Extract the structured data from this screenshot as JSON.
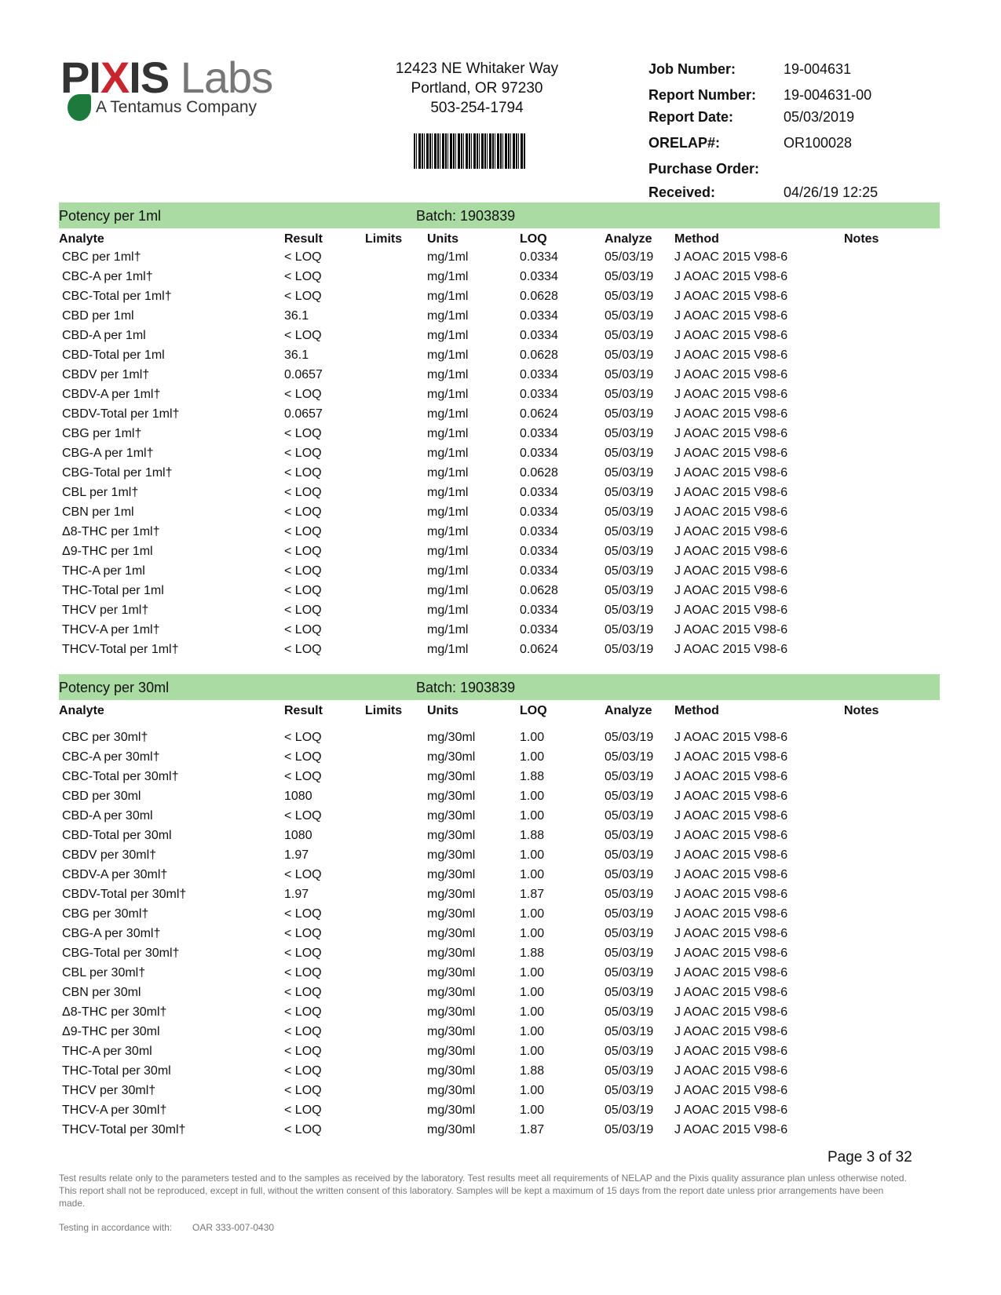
{
  "logo": {
    "text_part1": "PIXIS",
    "text_part2": "Labs",
    "subtitle": "A Tentamus Company"
  },
  "address": {
    "line1": "12423 NE Whitaker Way",
    "line2": "Portland, OR 97230",
    "phone": "503-254-1794"
  },
  "report_info": [
    {
      "label": "Job Number:",
      "value": "19-004631"
    },
    {
      "label": "Report Number:",
      "value": "19-004631-00"
    },
    {
      "label": "Report Date:",
      "value": "05/03/2019"
    },
    {
      "label": "ORELAP#:",
      "value": "OR100028"
    },
    {
      "label": "Purchase Order:",
      "value": ""
    },
    {
      "label": "Received:",
      "value": "04/26/19  12:25"
    }
  ],
  "columns": [
    "Analyte",
    "Result",
    "Limits",
    "Units",
    "LOQ",
    "Analyze",
    "Method",
    "Notes"
  ],
  "sections": [
    {
      "title": "Potency per 1ml",
      "batch": "Batch: 1903839",
      "rows": [
        [
          "CBC per 1ml†",
          "< LOQ",
          "",
          "mg/1ml",
          "0.0334",
          "05/03/19",
          "J AOAC 2015 V98-6",
          ""
        ],
        [
          "CBC-A per 1ml†",
          "< LOQ",
          "",
          "mg/1ml",
          "0.0334",
          "05/03/19",
          "J AOAC 2015 V98-6",
          ""
        ],
        [
          "CBC-Total per 1ml†",
          "< LOQ",
          "",
          "mg/1ml",
          "0.0628",
          "05/03/19",
          "J AOAC 2015 V98-6",
          ""
        ],
        [
          "CBD per 1ml",
          "36.1",
          "",
          "mg/1ml",
          "0.0334",
          "05/03/19",
          "J AOAC 2015 V98-6",
          ""
        ],
        [
          "CBD-A per 1ml",
          "< LOQ",
          "",
          "mg/1ml",
          "0.0334",
          "05/03/19",
          "J AOAC 2015 V98-6",
          ""
        ],
        [
          "CBD-Total per 1ml",
          "36.1",
          "",
          "mg/1ml",
          "0.0628",
          "05/03/19",
          "J AOAC 2015 V98-6",
          ""
        ],
        [
          "CBDV per 1ml†",
          "0.0657",
          "",
          "mg/1ml",
          "0.0334",
          "05/03/19",
          "J AOAC 2015 V98-6",
          ""
        ],
        [
          "CBDV-A per 1ml†",
          "< LOQ",
          "",
          "mg/1ml",
          "0.0334",
          "05/03/19",
          "J AOAC 2015 V98-6",
          ""
        ],
        [
          "CBDV-Total per 1ml†",
          "0.0657",
          "",
          "mg/1ml",
          "0.0624",
          "05/03/19",
          "J AOAC 2015 V98-6",
          ""
        ],
        [
          "CBG per 1ml†",
          "< LOQ",
          "",
          "mg/1ml",
          "0.0334",
          "05/03/19",
          "J AOAC 2015 V98-6",
          ""
        ],
        [
          "CBG-A per 1ml†",
          "< LOQ",
          "",
          "mg/1ml",
          "0.0334",
          "05/03/19",
          "J AOAC 2015 V98-6",
          ""
        ],
        [
          "CBG-Total per 1ml†",
          "< LOQ",
          "",
          "mg/1ml",
          "0.0628",
          "05/03/19",
          "J AOAC 2015 V98-6",
          ""
        ],
        [
          "CBL per 1ml†",
          "< LOQ",
          "",
          "mg/1ml",
          "0.0334",
          "05/03/19",
          "J AOAC 2015 V98-6",
          ""
        ],
        [
          "CBN per 1ml",
          "< LOQ",
          "",
          "mg/1ml",
          "0.0334",
          "05/03/19",
          "J AOAC 2015 V98-6",
          ""
        ],
        [
          "Δ8-THC per 1ml†",
          "< LOQ",
          "",
          "mg/1ml",
          "0.0334",
          "05/03/19",
          "J AOAC 2015 V98-6",
          ""
        ],
        [
          "Δ9-THC per 1ml",
          "< LOQ",
          "",
          "mg/1ml",
          "0.0334",
          "05/03/19",
          "J AOAC 2015 V98-6",
          ""
        ],
        [
          "THC-A per 1ml",
          "< LOQ",
          "",
          "mg/1ml",
          "0.0334",
          "05/03/19",
          "J AOAC 2015 V98-6",
          ""
        ],
        [
          "THC-Total per 1ml",
          "< LOQ",
          "",
          "mg/1ml",
          "0.0628",
          "05/03/19",
          "J AOAC 2015 V98-6",
          ""
        ],
        [
          "THCV per 1ml†",
          "< LOQ",
          "",
          "mg/1ml",
          "0.0334",
          "05/03/19",
          "J AOAC 2015 V98-6",
          ""
        ],
        [
          "THCV-A per 1ml†",
          "< LOQ",
          "",
          "mg/1ml",
          "0.0334",
          "05/03/19",
          "J AOAC 2015 V98-6",
          ""
        ],
        [
          "THCV-Total per 1ml†",
          "< LOQ",
          "",
          "mg/1ml",
          "0.0624",
          "05/03/19",
          "J AOAC 2015 V98-6",
          ""
        ]
      ]
    },
    {
      "title": "Potency per 30ml",
      "batch": "Batch: 1903839",
      "rows": [
        [
          "CBC per 30ml†",
          "< LOQ",
          "",
          "mg/30ml",
          "1.00",
          "05/03/19",
          "J AOAC 2015 V98-6",
          ""
        ],
        [
          "CBC-A per 30ml†",
          "< LOQ",
          "",
          "mg/30ml",
          "1.00",
          "05/03/19",
          "J AOAC 2015 V98-6",
          ""
        ],
        [
          "CBC-Total per 30ml†",
          "< LOQ",
          "",
          "mg/30ml",
          "1.88",
          "05/03/19",
          "J AOAC 2015 V98-6",
          ""
        ],
        [
          "CBD per 30ml",
          "1080",
          "",
          "mg/30ml",
          "1.00",
          "05/03/19",
          "J AOAC 2015 V98-6",
          ""
        ],
        [
          "CBD-A per 30ml",
          "< LOQ",
          "",
          "mg/30ml",
          "1.00",
          "05/03/19",
          "J AOAC 2015 V98-6",
          ""
        ],
        [
          "CBD-Total per 30ml",
          "1080",
          "",
          "mg/30ml",
          "1.88",
          "05/03/19",
          "J AOAC 2015 V98-6",
          ""
        ],
        [
          "CBDV per 30ml†",
          "1.97",
          "",
          "mg/30ml",
          "1.00",
          "05/03/19",
          "J AOAC 2015 V98-6",
          ""
        ],
        [
          "CBDV-A per 30ml†",
          "< LOQ",
          "",
          "mg/30ml",
          "1.00",
          "05/03/19",
          "J AOAC 2015 V98-6",
          ""
        ],
        [
          "CBDV-Total per 30ml†",
          "1.97",
          "",
          "mg/30ml",
          "1.87",
          "05/03/19",
          "J AOAC 2015 V98-6",
          ""
        ],
        [
          "CBG per 30ml†",
          "< LOQ",
          "",
          "mg/30ml",
          "1.00",
          "05/03/19",
          "J AOAC 2015 V98-6",
          ""
        ],
        [
          "CBG-A per 30ml†",
          "< LOQ",
          "",
          "mg/30ml",
          "1.00",
          "05/03/19",
          "J AOAC 2015 V98-6",
          ""
        ],
        [
          "CBG-Total per 30ml†",
          "< LOQ",
          "",
          "mg/30ml",
          "1.88",
          "05/03/19",
          "J AOAC 2015 V98-6",
          ""
        ],
        [
          "CBL per 30ml†",
          "< LOQ",
          "",
          "mg/30ml",
          "1.00",
          "05/03/19",
          "J AOAC 2015 V98-6",
          ""
        ],
        [
          "CBN per 30ml",
          "< LOQ",
          "",
          "mg/30ml",
          "1.00",
          "05/03/19",
          "J AOAC 2015 V98-6",
          ""
        ],
        [
          "Δ8-THC per 30ml†",
          "< LOQ",
          "",
          "mg/30ml",
          "1.00",
          "05/03/19",
          "J AOAC 2015 V98-6",
          ""
        ],
        [
          "Δ9-THC per 30ml",
          "< LOQ",
          "",
          "mg/30ml",
          "1.00",
          "05/03/19",
          "J AOAC 2015 V98-6",
          ""
        ],
        [
          "THC-A per 30ml",
          "< LOQ",
          "",
          "mg/30ml",
          "1.00",
          "05/03/19",
          "J AOAC 2015 V98-6",
          ""
        ],
        [
          "THC-Total per 30ml",
          "< LOQ",
          "",
          "mg/30ml",
          "1.88",
          "05/03/19",
          "J AOAC 2015 V98-6",
          ""
        ],
        [
          "THCV per 30ml†",
          "< LOQ",
          "",
          "mg/30ml",
          "1.00",
          "05/03/19",
          "J AOAC 2015 V98-6",
          ""
        ],
        [
          "THCV-A per 30ml†",
          "< LOQ",
          "",
          "mg/30ml",
          "1.00",
          "05/03/19",
          "J AOAC 2015 V98-6",
          ""
        ],
        [
          "THCV-Total per 30ml†",
          "< LOQ",
          "",
          "mg/30ml",
          "1.87",
          "05/03/19",
          "J AOAC 2015 V98-6",
          ""
        ]
      ]
    }
  ],
  "page": "Page 3 of 32",
  "disclaimer": "Test results relate only to the parameters tested and to the samples as received by the laboratory. Test results meet all requirements of NELAP and the Pixis quality assurance plan unless otherwise noted. This report shall not be reproduced, except in full, without the written consent of this laboratory. Samples will be kept a maximum of 15 days from the report date unless prior arrangements have been made.",
  "testing": {
    "label": "Testing in accordance with:",
    "value": "OAR 333-007-0430"
  },
  "colors": {
    "section_band": "#a9dba3",
    "logo_red": "#c8262e",
    "logo_green": "#1e7a3c"
  }
}
